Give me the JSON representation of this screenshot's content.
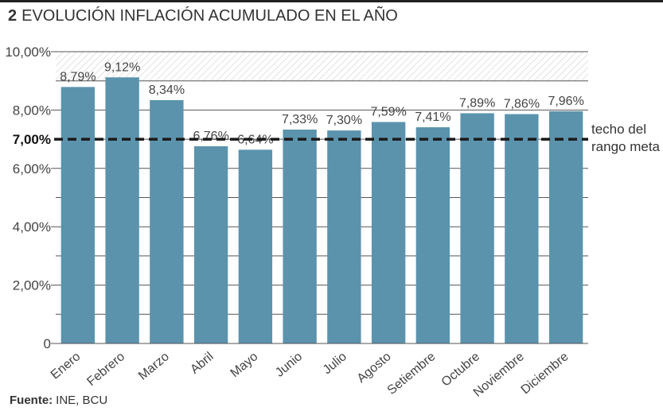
{
  "header": {
    "number": "2",
    "title": "EVOLUCIÓN INFLACIÓN ACUMULADO EN EL AÑO"
  },
  "source": {
    "label": "Fuente:",
    "text": "INE, BCU"
  },
  "colors": {
    "bar": "#5b93ad",
    "reference_line": "#1a1a1a",
    "grid": "#555555",
    "hatch": "#cfcfcf"
  },
  "chart_data": {
    "type": "bar",
    "title": "EVOLUCIÓN INFLACIÓN ACUMULADO EN EL AÑO",
    "categories": [
      "Enero",
      "Febrero",
      "Marzo",
      "Abril",
      "Mayo",
      "Junio",
      "Julio",
      "Agosto",
      "Setiembre",
      "Octubre",
      "Noviembre",
      "Diciembre"
    ],
    "values": [
      8.79,
      9.12,
      8.34,
      6.76,
      6.64,
      7.33,
      7.3,
      7.59,
      7.41,
      7.89,
      7.86,
      7.96
    ],
    "data_labels": [
      "8,79%",
      "9,12%",
      "8,34%",
      "6,76%",
      "6,64%",
      "7,33%",
      "7,30%",
      "7,59%",
      "7,41%",
      "7,89%",
      "7,86%",
      "7,96%"
    ],
    "ylim": [
      0,
      10
    ],
    "y_ticks": [
      0,
      2,
      4,
      6,
      8,
      10
    ],
    "y_tick_labels": [
      "0",
      "2,00%",
      "4,00%",
      "6,00%",
      "8,00%",
      "10,00%"
    ],
    "grid": true,
    "hatched_band": [
      9,
      10
    ],
    "reference_line": {
      "value": 7,
      "label": "7,00%",
      "annotation": [
        "techo del",
        "rango meta"
      ]
    }
  }
}
